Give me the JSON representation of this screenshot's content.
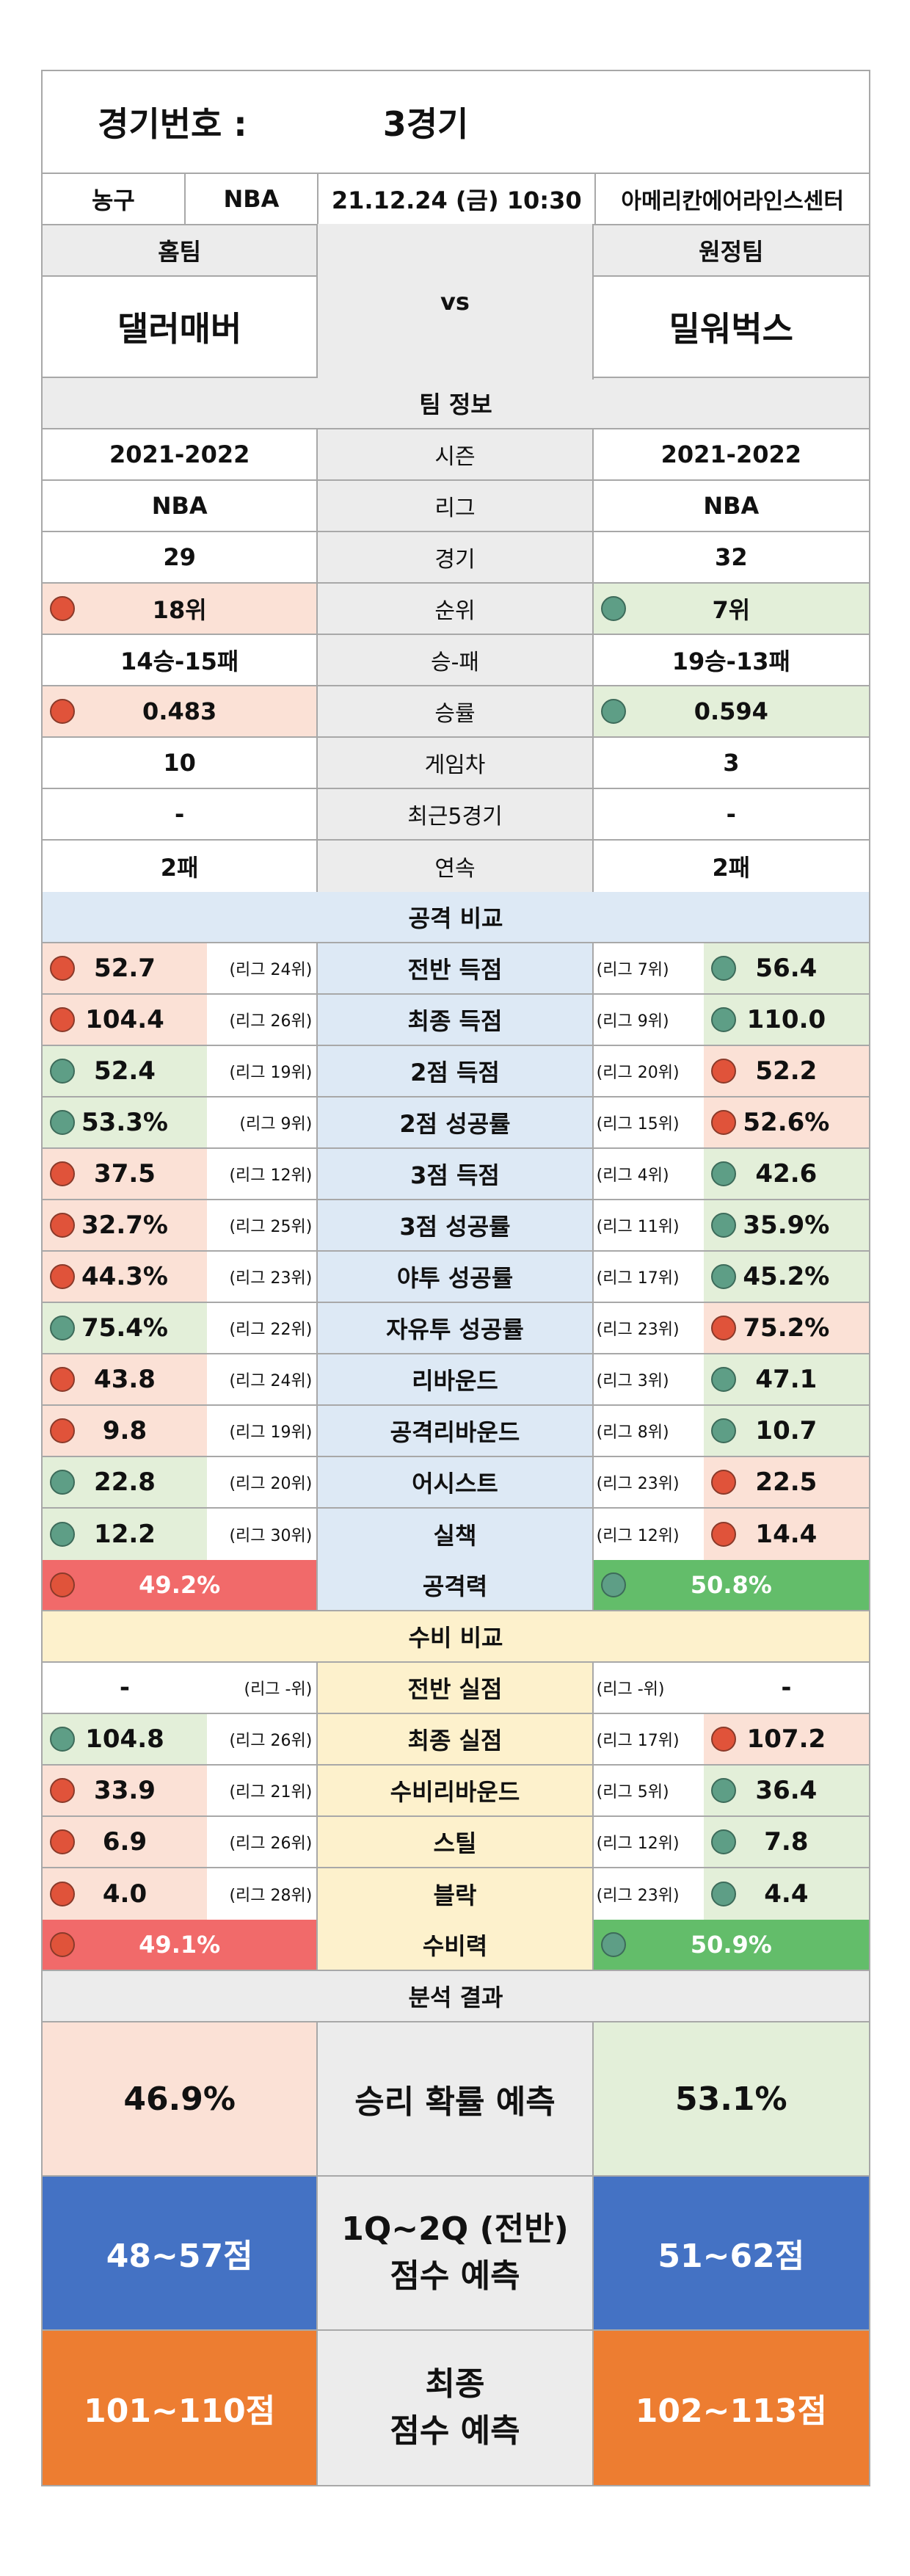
{
  "header": {
    "game_no_label": "경기번호 :",
    "game_no_value": "3경기"
  },
  "info": {
    "sport": "농구",
    "league": "NBA",
    "datetime": "21.12.24 (금) 10:30",
    "venue": "아메리칸에어라인스센터"
  },
  "teams": {
    "home_label": "홈팀",
    "away_label": "원정팀",
    "vs": "vs",
    "home": "댈러매버",
    "away": "밀워벅스"
  },
  "team_info": {
    "title": "팀 정보",
    "rows": [
      {
        "label": "시즌",
        "home": "2021-2022",
        "away": "2021-2022",
        "home_mark": "",
        "away_mark": ""
      },
      {
        "label": "리그",
        "home": "NBA",
        "away": "NBA",
        "home_mark": "",
        "away_mark": ""
      },
      {
        "label": "경기",
        "home": "29",
        "away": "32",
        "home_mark": "",
        "away_mark": ""
      },
      {
        "label": "순위",
        "home": "18위",
        "away": "7위",
        "home_mark": "red",
        "away_mark": "green"
      },
      {
        "label": "승-패",
        "home": "14승-15패",
        "away": "19승-13패",
        "home_mark": "",
        "away_mark": ""
      },
      {
        "label": "승률",
        "home": "0.483",
        "away": "0.594",
        "home_mark": "red",
        "away_mark": "green"
      },
      {
        "label": "게임차",
        "home": "10",
        "away": "3",
        "home_mark": "",
        "away_mark": ""
      },
      {
        "label": "최근5경기",
        "home": "-",
        "away": "-",
        "home_mark": "",
        "away_mark": ""
      },
      {
        "label": "연속",
        "home": "2패",
        "away": "2패",
        "home_mark": "",
        "away_mark": ""
      }
    ]
  },
  "offense": {
    "title": "공격 비교",
    "rows": [
      {
        "label": "전반 득점",
        "home": "52.7",
        "home_rank": "(리그 24위)",
        "home_mark": "red",
        "away": "56.4",
        "away_rank": "(리그 7위)",
        "away_mark": "green"
      },
      {
        "label": "최종 득점",
        "home": "104.4",
        "home_rank": "(리그 26위)",
        "home_mark": "red",
        "away": "110.0",
        "away_rank": "(리그 9위)",
        "away_mark": "green"
      },
      {
        "label": "2점 득점",
        "home": "52.4",
        "home_rank": "(리그 19위)",
        "home_mark": "green",
        "away": "52.2",
        "away_rank": "(리그 20위)",
        "away_mark": "red"
      },
      {
        "label": "2점 성공률",
        "home": "53.3%",
        "home_rank": "(리그 9위)",
        "home_mark": "green",
        "away": "52.6%",
        "away_rank": "(리그 15위)",
        "away_mark": "red"
      },
      {
        "label": "3점 득점",
        "home": "37.5",
        "home_rank": "(리그 12위)",
        "home_mark": "red",
        "away": "42.6",
        "away_rank": "(리그 4위)",
        "away_mark": "green"
      },
      {
        "label": "3점 성공률",
        "home": "32.7%",
        "home_rank": "(리그 25위)",
        "home_mark": "red",
        "away": "35.9%",
        "away_rank": "(리그 11위)",
        "away_mark": "green"
      },
      {
        "label": "야투 성공률",
        "home": "44.3%",
        "home_rank": "(리그 23위)",
        "home_mark": "red",
        "away": "45.2%",
        "away_rank": "(리그 17위)",
        "away_mark": "green"
      },
      {
        "label": "자유투 성공률",
        "home": "75.4%",
        "home_rank": "(리그 22위)",
        "home_mark": "green",
        "away": "75.2%",
        "away_rank": "(리그 23위)",
        "away_mark": "red"
      },
      {
        "label": "리바운드",
        "home": "43.8",
        "home_rank": "(리그 24위)",
        "home_mark": "red",
        "away": "47.1",
        "away_rank": "(리그 3위)",
        "away_mark": "green"
      },
      {
        "label": "공격리바운드",
        "home": "9.8",
        "home_rank": "(리그 19위)",
        "home_mark": "red",
        "away": "10.7",
        "away_rank": "(리그 8위)",
        "away_mark": "green"
      },
      {
        "label": "어시스트",
        "home": "22.8",
        "home_rank": "(리그 20위)",
        "home_mark": "green",
        "away": "22.5",
        "away_rank": "(리그 23위)",
        "away_mark": "red"
      },
      {
        "label": "실책",
        "home": "12.2",
        "home_rank": "(리그 30위)",
        "home_mark": "green",
        "away": "14.4",
        "away_rank": "(리그 12위)",
        "away_mark": "red"
      }
    ],
    "power": {
      "label": "공격력",
      "home": "49.2%",
      "away": "50.8%"
    }
  },
  "defense": {
    "title": "수비 비교",
    "rows": [
      {
        "label": "전반 실점",
        "home": "-",
        "home_rank": "(리그 -위)",
        "home_mark": "",
        "away": "-",
        "away_rank": "(리그 -위)",
        "away_mark": ""
      },
      {
        "label": "최종 실점",
        "home": "104.8",
        "home_rank": "(리그 26위)",
        "home_mark": "green",
        "away": "107.2",
        "away_rank": "(리그 17위)",
        "away_mark": "red"
      },
      {
        "label": "수비리바운드",
        "home": "33.9",
        "home_rank": "(리그 21위)",
        "home_mark": "red",
        "away": "36.4",
        "away_rank": "(리그 5위)",
        "away_mark": "green"
      },
      {
        "label": "스틸",
        "home": "6.9",
        "home_rank": "(리그 26위)",
        "home_mark": "red",
        "away": "7.8",
        "away_rank": "(리그 12위)",
        "away_mark": "green"
      },
      {
        "label": "블락",
        "home": "4.0",
        "home_rank": "(리그 28위)",
        "home_mark": "red",
        "away": "4.4",
        "away_rank": "(리그 23위)",
        "away_mark": "green"
      }
    ],
    "power": {
      "label": "수비력",
      "home": "49.1%",
      "away": "50.9%"
    }
  },
  "analysis": {
    "title": "분석 결과",
    "win": {
      "label": "승리 확률 예측",
      "home": "46.9%",
      "away": "53.1%"
    },
    "half": {
      "label1": "1Q~2Q (전반)",
      "label2": "점수 예측",
      "home": "48~57점",
      "away": "51~62점"
    },
    "final": {
      "label1": "최종",
      "label2": "점수 예측",
      "home": "101~110점",
      "away": "102~113점"
    }
  },
  "colors": {
    "good": "#e3efd9",
    "bad": "#fbe1d6",
    "dot_good": "#5e9e86",
    "dot_bad": "#e0533a",
    "half_bg": "#4472c4",
    "final_bg": "#ed7d31"
  }
}
